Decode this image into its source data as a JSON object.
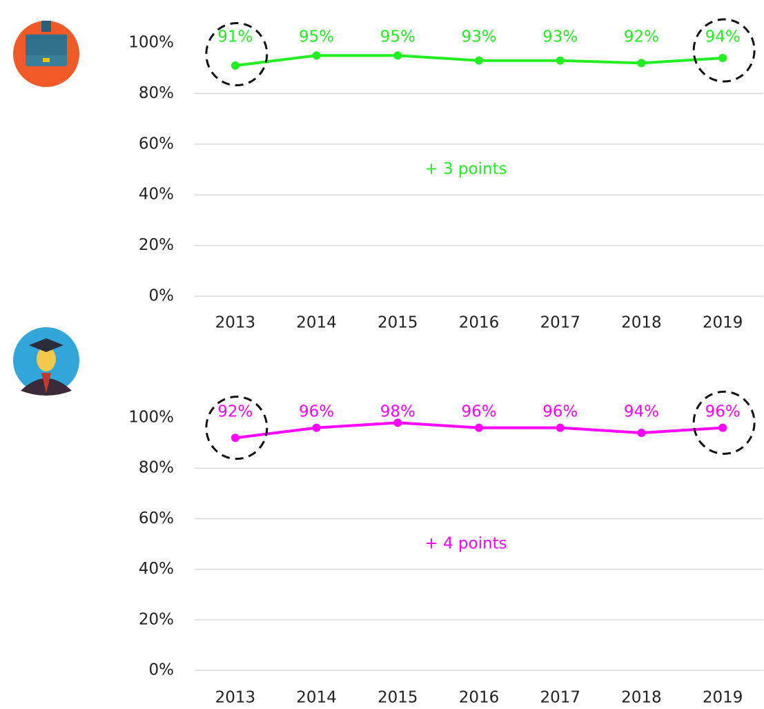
{
  "chart_data": [
    {
      "type": "line",
      "categories": [
        "2013",
        "2014",
        "2015",
        "2016",
        "2017",
        "2018",
        "2019"
      ],
      "values": [
        91,
        95,
        95,
        93,
        93,
        92,
        94
      ],
      "value_labels": [
        "91%",
        "95%",
        "95%",
        "93%",
        "93%",
        "92%",
        "94%"
      ],
      "color": "#22ee22",
      "annotation": "+ 3 points",
      "ylim": [
        0,
        100
      ],
      "yticks": [
        {
          "value": 0,
          "label": "0%"
        },
        {
          "value": 20,
          "label": "20%"
        },
        {
          "value": 40,
          "label": "40%"
        },
        {
          "value": 60,
          "label": "60%"
        },
        {
          "value": 80,
          "label": "80%"
        },
        {
          "value": 100,
          "label": "100%"
        }
      ],
      "grid": true
    },
    {
      "type": "line",
      "categories": [
        "2013",
        "2014",
        "2015",
        "2016",
        "2017",
        "2018",
        "2019"
      ],
      "values": [
        92,
        96,
        98,
        96,
        96,
        94,
        96
      ],
      "value_labels": [
        "92%",
        "96%",
        "98%",
        "96%",
        "96%",
        "94%",
        "96%"
      ],
      "color": "#ff00ff",
      "annotation": "+ 4 points",
      "ylim": [
        0,
        100
      ],
      "yticks": [
        {
          "value": 0,
          "label": "0%"
        },
        {
          "value": 20,
          "label": "20%"
        },
        {
          "value": 40,
          "label": "40%"
        },
        {
          "value": 60,
          "label": "60%"
        },
        {
          "value": 80,
          "label": "80%"
        },
        {
          "value": 100,
          "label": "100%"
        }
      ],
      "grid": true
    }
  ]
}
